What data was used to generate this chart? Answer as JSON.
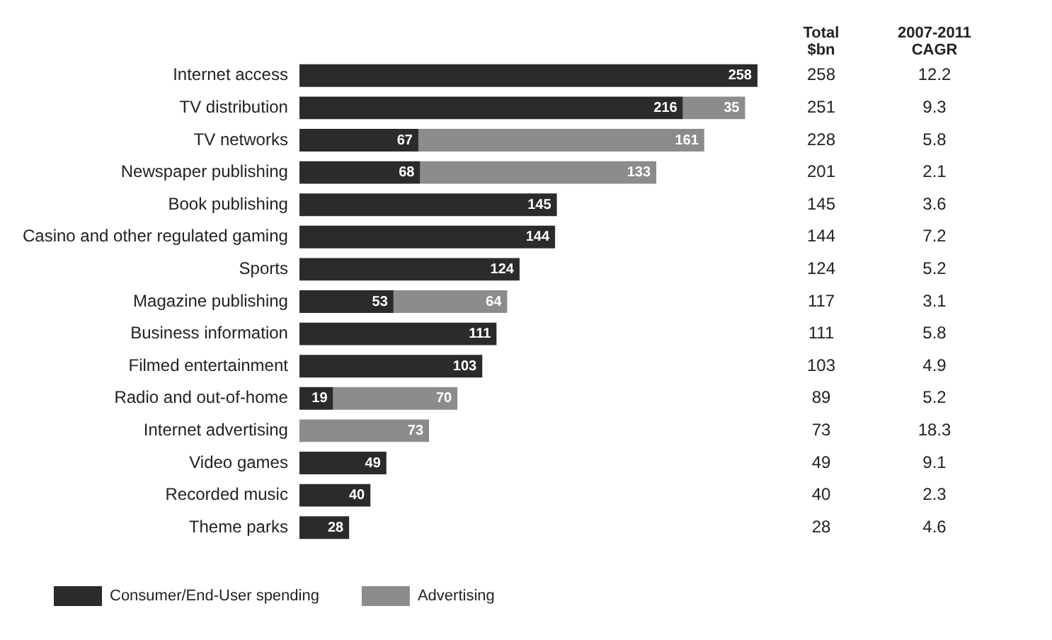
{
  "chart_data": {
    "type": "bar",
    "orientation": "horizontal",
    "stacked": true,
    "legend": "bottom left",
    "grid": false,
    "categories": [
      "Internet access",
      "TV distribution",
      "TV networks",
      "Newspaper publishing",
      "Book publishing",
      "Casino and other regulated gaming",
      "Sports",
      "Magazine publishing",
      "Business information",
      "Filmed entertainment",
      "Radio and out-of-home",
      "Internet advertising",
      "Video games",
      "Recorded music",
      "Theme parks"
    ],
    "series": [
      {
        "name": "Consumer/End-User spending",
        "color": "#2b2b2b",
        "values": [
          258,
          216,
          67,
          68,
          145,
          144,
          124,
          53,
          111,
          103,
          19,
          null,
          49,
          40,
          28
        ],
        "value_labels": [
          "258",
          "216",
          "67",
          "68",
          "145",
          "144",
          "124",
          "53",
          "111",
          "103",
          "19",
          null,
          "49",
          "40",
          "28"
        ]
      },
      {
        "name": "Advertising",
        "color": "#8c8c8c",
        "values": [
          null,
          35,
          161,
          133,
          null,
          null,
          null,
          64,
          null,
          null,
          70,
          73,
          null,
          null,
          null
        ],
        "value_labels": [
          null,
          "35",
          "161",
          "133",
          null,
          null,
          null,
          "64",
          null,
          null,
          "70",
          "73",
          null,
          null,
          null
        ]
      }
    ],
    "annotations": [
      "Total\n$bn",
      "2007-2011\nCAGR",
      "258",
      "251",
      "228",
      "201",
      "145",
      "144",
      "124",
      "117",
      "111",
      "103",
      "89",
      "73",
      "49",
      "40",
      "28",
      "12.2",
      "9.3",
      "5.8",
      "2.1",
      "3.6",
      "7.2",
      "5.2",
      "3.1",
      "5.8",
      "4.9",
      "5.2",
      "18.3",
      "9.1",
      "2.3",
      "4.6"
    ]
  }
}
